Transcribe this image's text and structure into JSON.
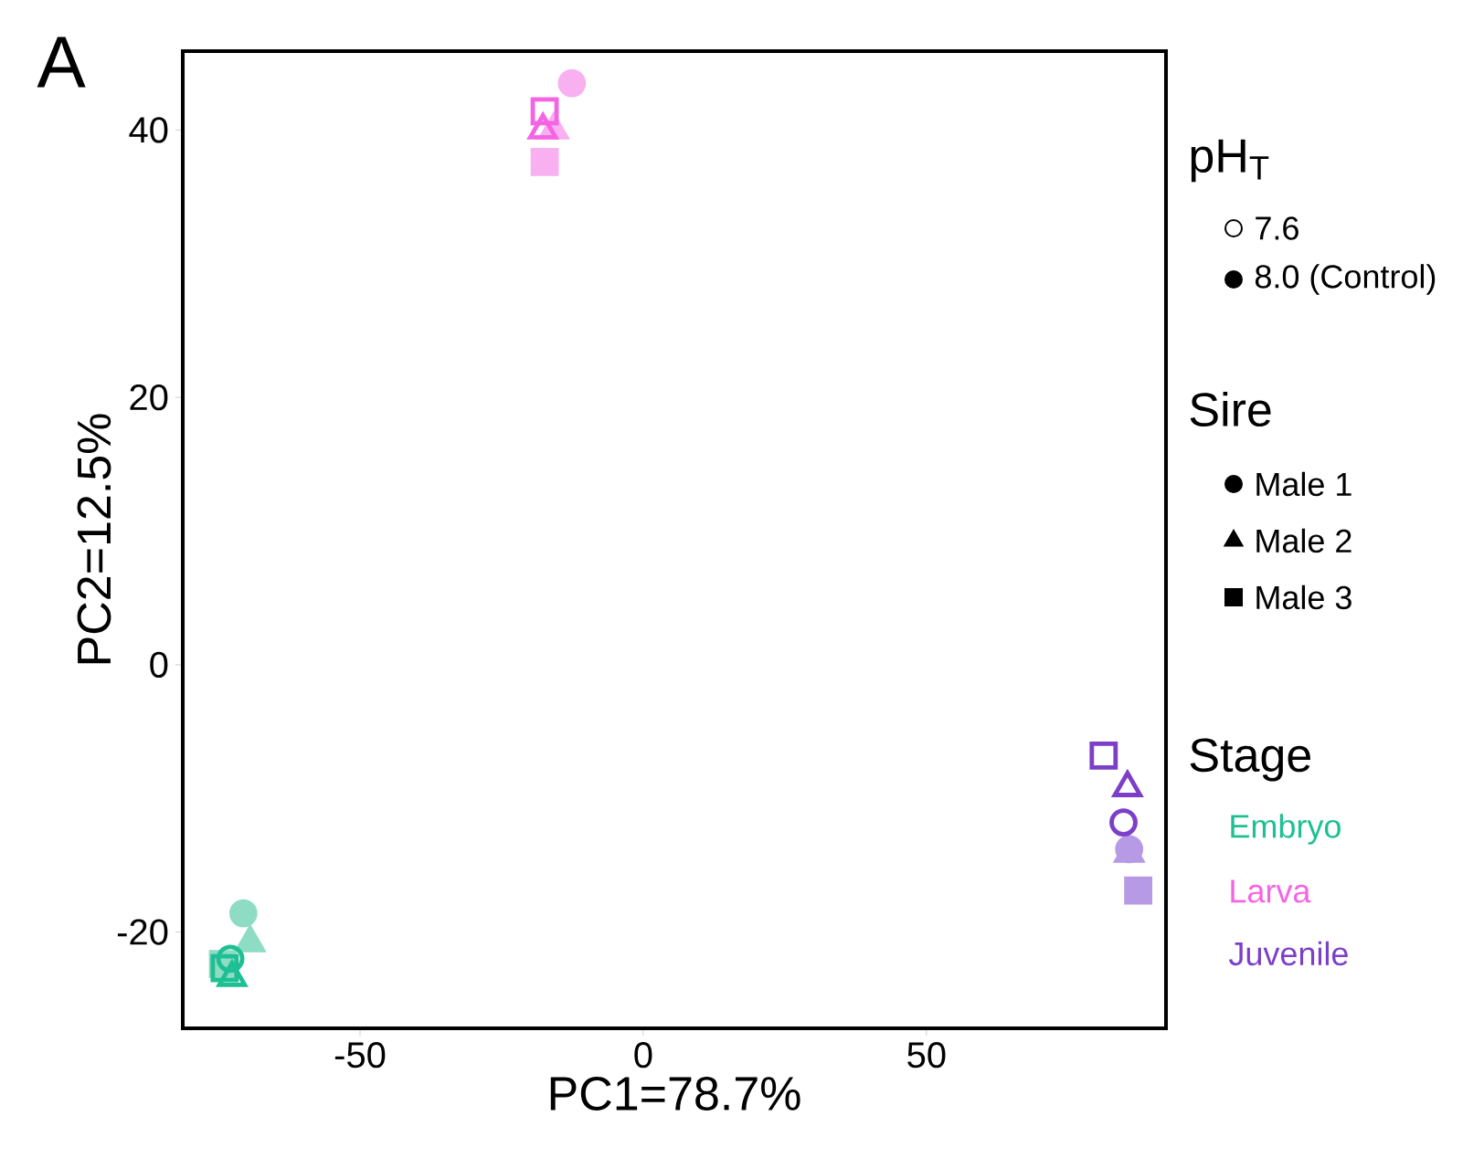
{
  "chart_data": {
    "type": "scatter",
    "xlabel": "PC1=78.7%",
    "ylabel": "PC2=12.5%",
    "xlim": [
      -81.3,
      92.3
    ],
    "ylim": [
      -27.2,
      45.9
    ],
    "xticks": [
      -50,
      0,
      50
    ],
    "yticks": [
      -20,
      0,
      20,
      40
    ],
    "annotations": [
      "A",
      "pH$_{T}$",
      "7.6",
      "8.0 (Control)",
      "Sire",
      "Male 1",
      "Male 2",
      "Male 3",
      "Stage",
      "Embryo",
      "Larva",
      "Juvenile"
    ],
    "series": [
      {
        "color": "#8fdcc4",
        "marker": "circle",
        "x": [
          -70.6
        ],
        "values": [
          -18.6
        ]
      },
      {
        "color": "#8fdcc4",
        "marker": "triangle",
        "x": [
          -69.4
        ],
        "values": [
          -20.8
        ]
      },
      {
        "color": "#8fdcc4",
        "marker": "square",
        "x": [
          -74.2
        ],
        "values": [
          -22.4
        ]
      },
      {
        "color": "#1fbf94",
        "marker": "circle",
        "x": [
          -72.9
        ],
        "values": [
          -22.0
        ]
      },
      {
        "color": "#1fbf94",
        "marker": "triangle",
        "x": [
          -72.6
        ],
        "values": [
          -23.4
        ]
      },
      {
        "color": "#1fbf94",
        "marker": "square",
        "x": [
          -73.9
        ],
        "values": [
          -22.7
        ]
      },
      {
        "color": "#f9b0f0",
        "marker": "circle",
        "x": [
          -12.6
        ],
        "values": [
          43.5
        ]
      },
      {
        "color": "#f9b0f0",
        "marker": "triangle",
        "x": [
          -15.8
        ],
        "values": [
          40.0
        ]
      },
      {
        "color": "#f9b0f0",
        "marker": "square",
        "x": [
          -17.4
        ],
        "values": [
          37.6
        ]
      },
      {
        "color": "#f564e3",
        "marker": "triangle",
        "x": [
          -17.7
        ],
        "values": [
          40.0
        ]
      },
      {
        "color": "#f564e3",
        "marker": "square",
        "x": [
          -17.4
        ],
        "values": [
          41.4
        ]
      },
      {
        "color": "#b79ae6",
        "marker": "circle",
        "x": [
          85.8
        ],
        "values": [
          -13.8
        ]
      },
      {
        "color": "#b79ae6",
        "marker": "triangle",
        "x": [
          85.8
        ],
        "values": [
          -14.1
        ]
      },
      {
        "color": "#b79ae6",
        "marker": "square",
        "x": [
          87.4
        ],
        "values": [
          -16.9
        ]
      },
      {
        "color": "#7b3fc8",
        "marker": "circle",
        "x": [
          84.8
        ],
        "values": [
          -11.8
        ]
      },
      {
        "color": "#7b3fc8",
        "marker": "triangle",
        "x": [
          85.5
        ],
        "values": [
          -9.2
        ]
      },
      {
        "color": "#7b3fc8",
        "marker": "square",
        "x": [
          81.3
        ],
        "values": [
          -6.8
        ]
      }
    ]
  }
}
